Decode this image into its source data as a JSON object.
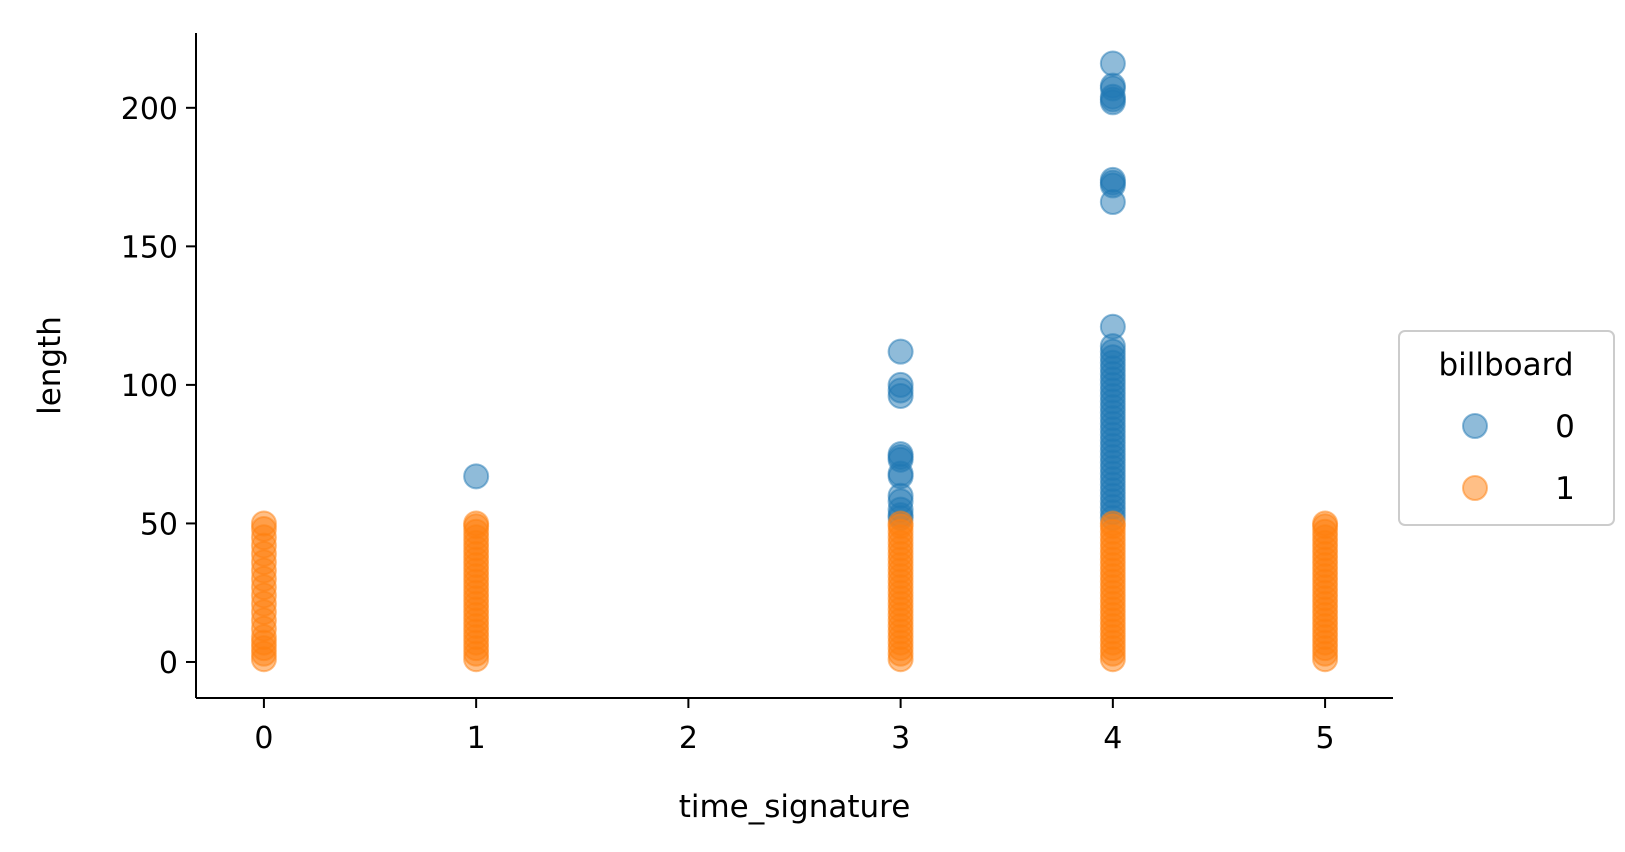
{
  "chart_data": {
    "type": "scatter",
    "xlabel": "time_signature",
    "ylabel": "length",
    "xlim": [
      -0.32,
      5.32
    ],
    "ylim": [
      -13,
      227
    ],
    "x_ticks": [
      "0",
      "1",
      "2",
      "3",
      "4",
      "5"
    ],
    "y_ticks": [
      "0",
      "50",
      "100",
      "150",
      "200"
    ],
    "grid": false,
    "legend": {
      "title": "billboard",
      "placement": "right, outside plot",
      "entries": [
        "0",
        "1"
      ]
    },
    "series": [
      {
        "name": "0",
        "color": "#1f77b4",
        "points": [
          {
            "x": 1,
            "y": 67
          },
          {
            "x": 3,
            "y": 112
          },
          {
            "x": 3,
            "y": 100
          },
          {
            "x": 3,
            "y": 98
          },
          {
            "x": 3,
            "y": 96
          },
          {
            "x": 3,
            "y": 75
          },
          {
            "x": 3,
            "y": 74
          },
          {
            "x": 3,
            "y": 73
          },
          {
            "x": 3,
            "y": 68
          },
          {
            "x": 3,
            "y": 67
          },
          {
            "x": 3,
            "y": 60
          },
          {
            "x": 3,
            "y": 58
          },
          {
            "x": 3,
            "y": 55
          },
          {
            "x": 3,
            "y": 53
          },
          {
            "x": 3,
            "y": 52
          },
          {
            "x": 4,
            "y": 216
          },
          {
            "x": 4,
            "y": 208
          },
          {
            "x": 4,
            "y": 207
          },
          {
            "x": 4,
            "y": 204
          },
          {
            "x": 4,
            "y": 203
          },
          {
            "x": 4,
            "y": 202
          },
          {
            "x": 4,
            "y": 174
          },
          {
            "x": 4,
            "y": 173
          },
          {
            "x": 4,
            "y": 172
          },
          {
            "x": 4,
            "y": 166
          },
          {
            "x": 4,
            "y": 121
          },
          {
            "x": 4,
            "y": 114
          },
          {
            "x": 4,
            "y": 112
          },
          {
            "x": 4,
            "y": 110
          },
          {
            "x": 4,
            "y": 108
          },
          {
            "x": 4,
            "y": 106
          },
          {
            "x": 4,
            "y": 104
          },
          {
            "x": 4,
            "y": 102
          },
          {
            "x": 4,
            "y": 100
          },
          {
            "x": 4,
            "y": 98
          },
          {
            "x": 4,
            "y": 96
          },
          {
            "x": 4,
            "y": 94
          },
          {
            "x": 4,
            "y": 92
          },
          {
            "x": 4,
            "y": 90
          },
          {
            "x": 4,
            "y": 88
          },
          {
            "x": 4,
            "y": 86
          },
          {
            "x": 4,
            "y": 84
          },
          {
            "x": 4,
            "y": 82
          },
          {
            "x": 4,
            "y": 80
          },
          {
            "x": 4,
            "y": 78
          },
          {
            "x": 4,
            "y": 76
          },
          {
            "x": 4,
            "y": 74
          },
          {
            "x": 4,
            "y": 72
          },
          {
            "x": 4,
            "y": 70
          },
          {
            "x": 4,
            "y": 68
          },
          {
            "x": 4,
            "y": 66
          },
          {
            "x": 4,
            "y": 64
          },
          {
            "x": 4,
            "y": 62
          },
          {
            "x": 4,
            "y": 60
          },
          {
            "x": 4,
            "y": 58
          },
          {
            "x": 4,
            "y": 56
          },
          {
            "x": 4,
            "y": 54
          },
          {
            "x": 4,
            "y": 52
          }
        ]
      },
      {
        "name": "1",
        "color": "#ff7f0e",
        "points": [
          {
            "x": 0,
            "y": 1
          },
          {
            "x": 0,
            "y": 3
          },
          {
            "x": 0,
            "y": 5
          },
          {
            "x": 0,
            "y": 7
          },
          {
            "x": 0,
            "y": 9
          },
          {
            "x": 0,
            "y": 12
          },
          {
            "x": 0,
            "y": 15
          },
          {
            "x": 0,
            "y": 18
          },
          {
            "x": 0,
            "y": 21
          },
          {
            "x": 0,
            "y": 24
          },
          {
            "x": 0,
            "y": 27
          },
          {
            "x": 0,
            "y": 30
          },
          {
            "x": 0,
            "y": 33
          },
          {
            "x": 0,
            "y": 36
          },
          {
            "x": 0,
            "y": 39
          },
          {
            "x": 0,
            "y": 42
          },
          {
            "x": 0,
            "y": 45
          },
          {
            "x": 0,
            "y": 48
          },
          {
            "x": 0,
            "y": 50
          },
          {
            "x": 1,
            "y": 1
          },
          {
            "x": 1,
            "y": 3
          },
          {
            "x": 1,
            "y": 5
          },
          {
            "x": 1,
            "y": 7
          },
          {
            "x": 1,
            "y": 9
          },
          {
            "x": 1,
            "y": 11
          },
          {
            "x": 1,
            "y": 13
          },
          {
            "x": 1,
            "y": 15
          },
          {
            "x": 1,
            "y": 17
          },
          {
            "x": 1,
            "y": 19
          },
          {
            "x": 1,
            "y": 21
          },
          {
            "x": 1,
            "y": 23
          },
          {
            "x": 1,
            "y": 25
          },
          {
            "x": 1,
            "y": 27
          },
          {
            "x": 1,
            "y": 29
          },
          {
            "x": 1,
            "y": 31
          },
          {
            "x": 1,
            "y": 33
          },
          {
            "x": 1,
            "y": 35
          },
          {
            "x": 1,
            "y": 37
          },
          {
            "x": 1,
            "y": 39
          },
          {
            "x": 1,
            "y": 41
          },
          {
            "x": 1,
            "y": 43
          },
          {
            "x": 1,
            "y": 45
          },
          {
            "x": 1,
            "y": 47
          },
          {
            "x": 1,
            "y": 49
          },
          {
            "x": 1,
            "y": 50
          },
          {
            "x": 3,
            "y": 1
          },
          {
            "x": 3,
            "y": 3
          },
          {
            "x": 3,
            "y": 5
          },
          {
            "x": 3,
            "y": 7
          },
          {
            "x": 3,
            "y": 9
          },
          {
            "x": 3,
            "y": 11
          },
          {
            "x": 3,
            "y": 13
          },
          {
            "x": 3,
            "y": 15
          },
          {
            "x": 3,
            "y": 17
          },
          {
            "x": 3,
            "y": 19
          },
          {
            "x": 3,
            "y": 21
          },
          {
            "x": 3,
            "y": 23
          },
          {
            "x": 3,
            "y": 25
          },
          {
            "x": 3,
            "y": 27
          },
          {
            "x": 3,
            "y": 29
          },
          {
            "x": 3,
            "y": 31
          },
          {
            "x": 3,
            "y": 33
          },
          {
            "x": 3,
            "y": 35
          },
          {
            "x": 3,
            "y": 37
          },
          {
            "x": 3,
            "y": 39
          },
          {
            "x": 3,
            "y": 41
          },
          {
            "x": 3,
            "y": 43
          },
          {
            "x": 3,
            "y": 45
          },
          {
            "x": 3,
            "y": 47
          },
          {
            "x": 3,
            "y": 49
          },
          {
            "x": 3,
            "y": 50
          },
          {
            "x": 4,
            "y": 1
          },
          {
            "x": 4,
            "y": 3
          },
          {
            "x": 4,
            "y": 5
          },
          {
            "x": 4,
            "y": 7
          },
          {
            "x": 4,
            "y": 9
          },
          {
            "x": 4,
            "y": 11
          },
          {
            "x": 4,
            "y": 13
          },
          {
            "x": 4,
            "y": 15
          },
          {
            "x": 4,
            "y": 17
          },
          {
            "x": 4,
            "y": 19
          },
          {
            "x": 4,
            "y": 21
          },
          {
            "x": 4,
            "y": 23
          },
          {
            "x": 4,
            "y": 25
          },
          {
            "x": 4,
            "y": 27
          },
          {
            "x": 4,
            "y": 29
          },
          {
            "x": 4,
            "y": 31
          },
          {
            "x": 4,
            "y": 33
          },
          {
            "x": 4,
            "y": 35
          },
          {
            "x": 4,
            "y": 37
          },
          {
            "x": 4,
            "y": 39
          },
          {
            "x": 4,
            "y": 41
          },
          {
            "x": 4,
            "y": 43
          },
          {
            "x": 4,
            "y": 45
          },
          {
            "x": 4,
            "y": 47
          },
          {
            "x": 4,
            "y": 49
          },
          {
            "x": 4,
            "y": 50
          },
          {
            "x": 5,
            "y": 1
          },
          {
            "x": 5,
            "y": 3
          },
          {
            "x": 5,
            "y": 5
          },
          {
            "x": 5,
            "y": 7
          },
          {
            "x": 5,
            "y": 9
          },
          {
            "x": 5,
            "y": 11
          },
          {
            "x": 5,
            "y": 13
          },
          {
            "x": 5,
            "y": 15
          },
          {
            "x": 5,
            "y": 17
          },
          {
            "x": 5,
            "y": 19
          },
          {
            "x": 5,
            "y": 21
          },
          {
            "x": 5,
            "y": 23
          },
          {
            "x": 5,
            "y": 25
          },
          {
            "x": 5,
            "y": 27
          },
          {
            "x": 5,
            "y": 29
          },
          {
            "x": 5,
            "y": 31
          },
          {
            "x": 5,
            "y": 33
          },
          {
            "x": 5,
            "y": 35
          },
          {
            "x": 5,
            "y": 37
          },
          {
            "x": 5,
            "y": 39
          },
          {
            "x": 5,
            "y": 41
          },
          {
            "x": 5,
            "y": 43
          },
          {
            "x": 5,
            "y": 45
          },
          {
            "x": 5,
            "y": 47
          },
          {
            "x": 5,
            "y": 49
          },
          {
            "x": 5,
            "y": 50
          }
        ]
      }
    ]
  }
}
